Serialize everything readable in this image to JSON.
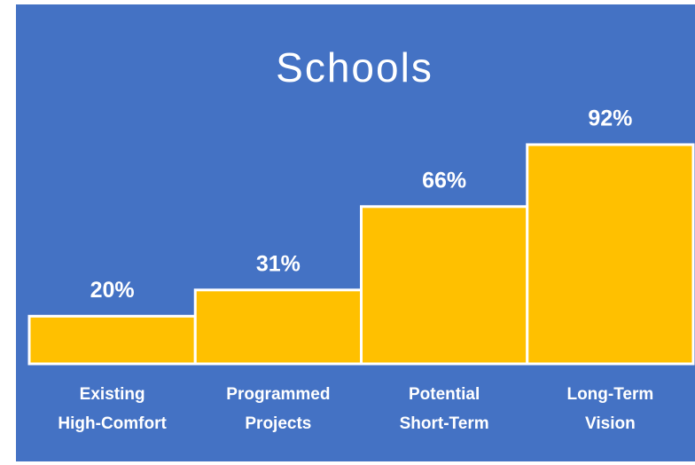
{
  "chart_data": {
    "type": "bar",
    "title": "Schools",
    "categories": [
      [
        "Existing",
        "High-Comfort"
      ],
      [
        "Programmed",
        "Projects"
      ],
      [
        "Potential",
        "Short-Term"
      ],
      [
        "Long-Term",
        "Vision"
      ]
    ],
    "values": [
      20,
      31,
      66,
      92
    ],
    "value_labels": [
      "20%",
      "31%",
      "66%",
      "92%"
    ],
    "color": "#ffc000",
    "ylim": [
      0,
      100
    ]
  }
}
